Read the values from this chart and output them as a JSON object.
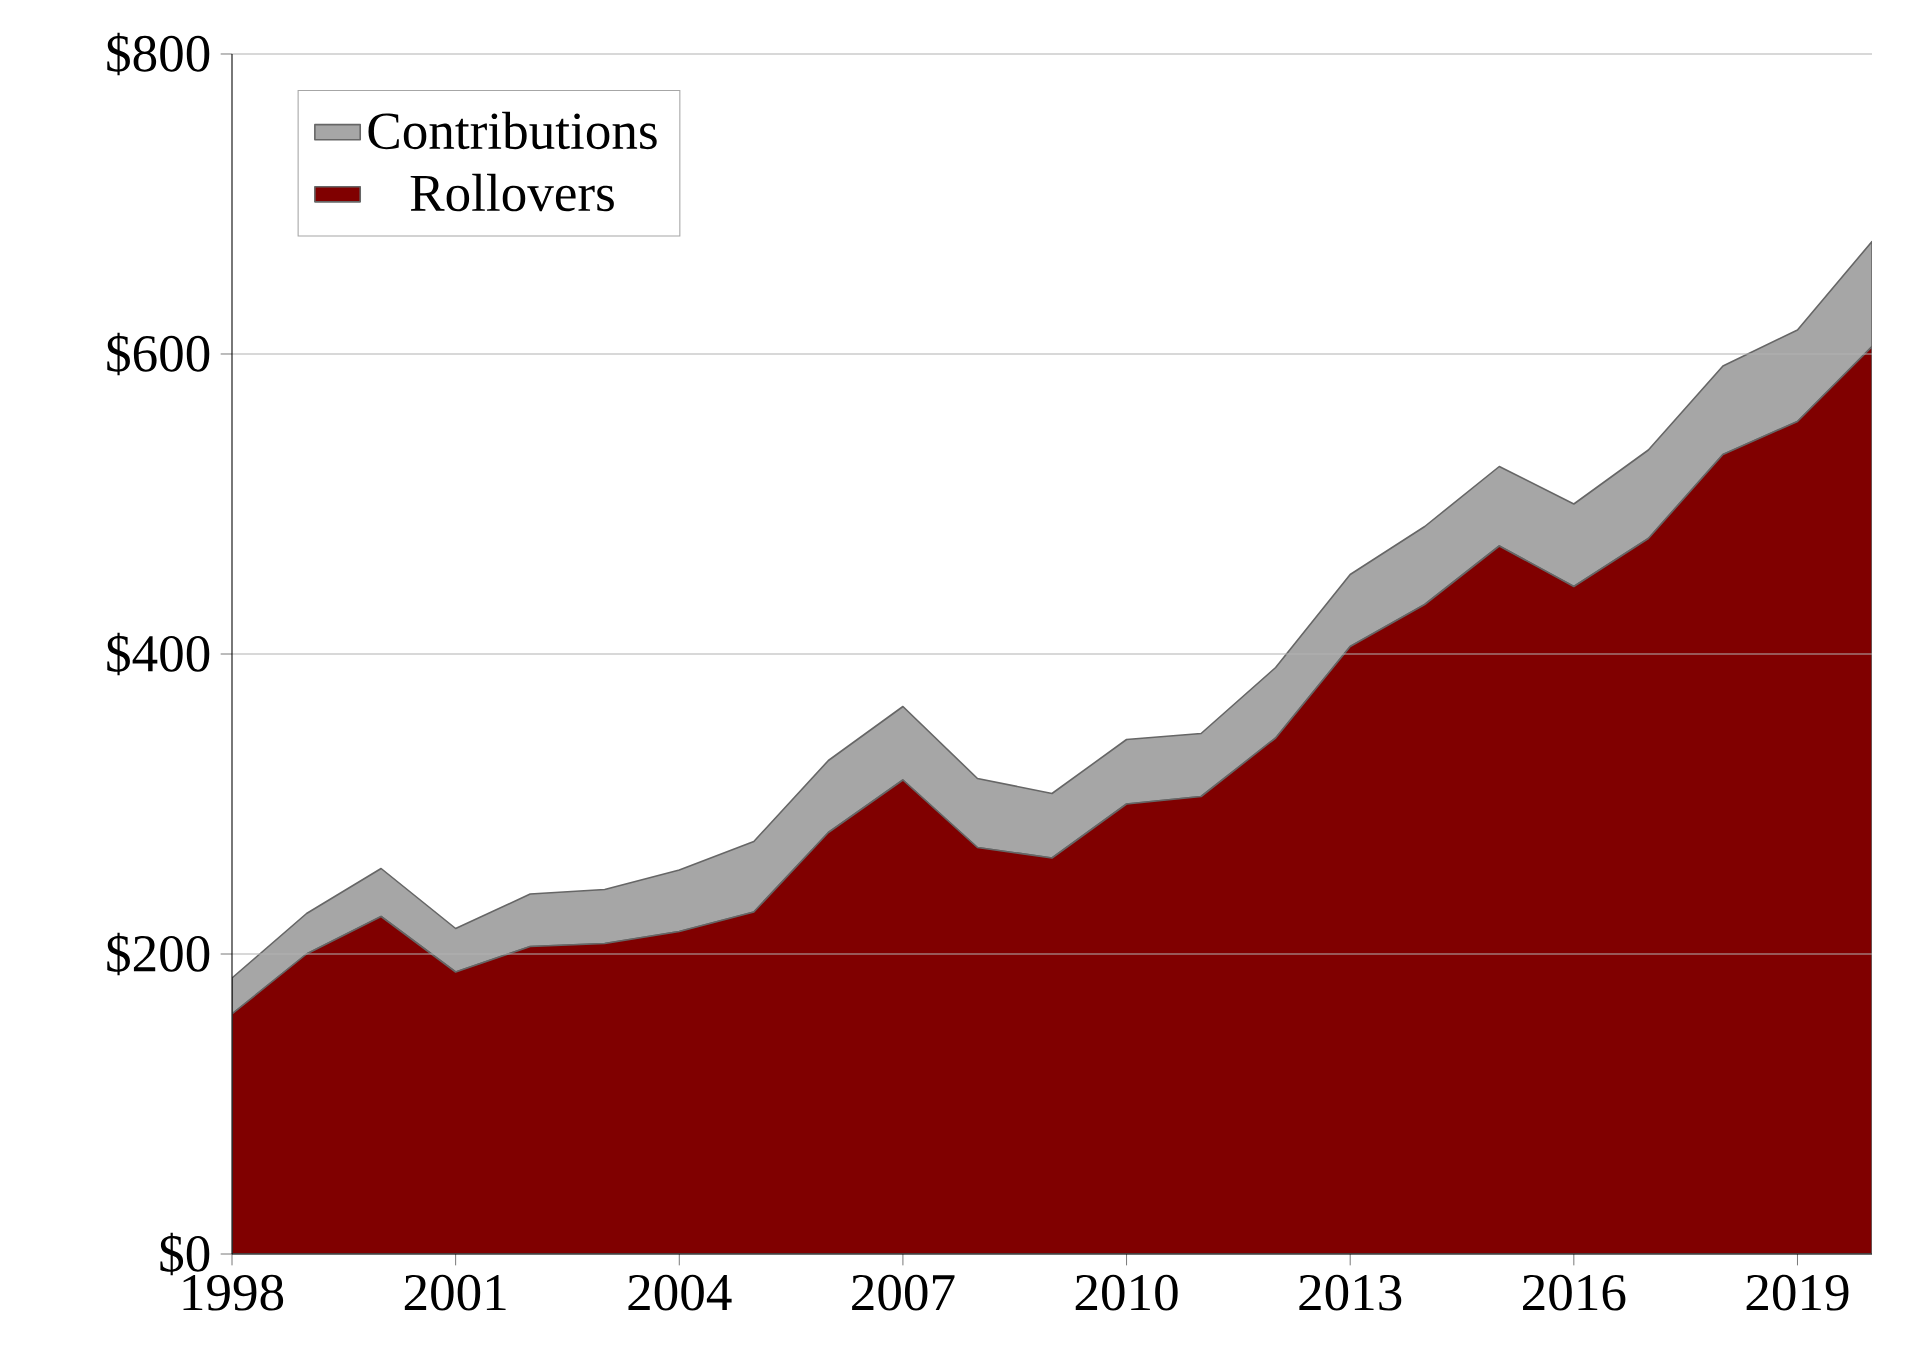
{
  "chart_data": {
    "type": "area",
    "stacked": true,
    "x": [
      1998,
      1999,
      2000,
      2001,
      2002,
      2003,
      2004,
      2005,
      2006,
      2007,
      2008,
      2009,
      2010,
      2011,
      2012,
      2013,
      2014,
      2015,
      2016,
      2017,
      2018,
      2019,
      2020
    ],
    "series": [
      {
        "name": "Rollovers",
        "color": "#800000",
        "values": [
          160,
          200,
          225,
          188,
          205,
          207,
          215,
          228,
          281,
          316,
          271,
          264,
          300,
          305,
          344,
          405,
          433,
          472,
          445,
          477,
          533,
          555,
          605
        ]
      },
      {
        "name": "Contributions",
        "color": "#a6a6a6",
        "values": [
          24,
          27,
          32,
          29,
          35,
          36,
          41,
          47,
          48,
          49,
          46,
          43,
          43,
          42,
          47,
          48,
          52,
          53,
          55,
          59,
          59,
          61,
          70
        ]
      }
    ],
    "xlim": [
      1998,
      2020
    ],
    "ylim": [
      0,
      800
    ],
    "xticks": [
      1998,
      2001,
      2004,
      2007,
      2010,
      2013,
      2016,
      2019
    ],
    "yticks": [
      {
        "value": 0,
        "label": "$0"
      },
      {
        "value": 200,
        "label": "$200"
      },
      {
        "value": 400,
        "label": "$400"
      },
      {
        "value": 600,
        "label": "$600"
      },
      {
        "value": 800,
        "label": "$800"
      }
    ],
    "grid": "y",
    "legend": "top left"
  }
}
